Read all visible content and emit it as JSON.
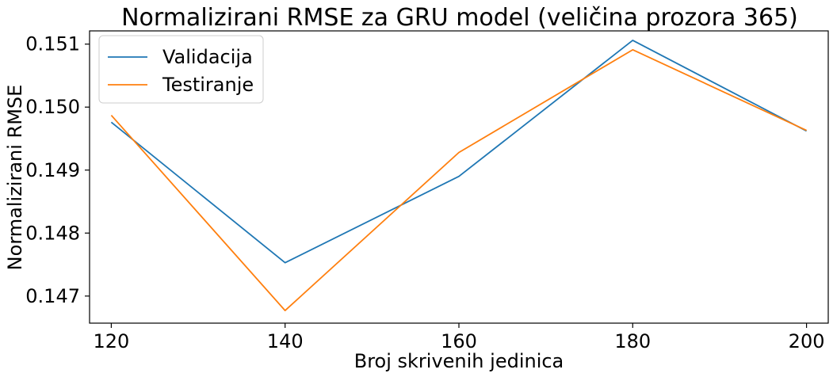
{
  "chart_data": {
    "type": "line",
    "title": "Normalizirani RMSE za GRU model (veličina prozora 365)",
    "xlabel": "Broj skrivenih jedinica",
    "ylabel": "Normalizirani RMSE",
    "x": [
      120,
      140,
      160,
      180,
      200
    ],
    "x_ticks": [
      120,
      140,
      160,
      180,
      200
    ],
    "y_ticks": [
      0.147,
      0.148,
      0.149,
      0.15,
      0.151
    ],
    "y_tick_labels": [
      "0.147",
      "0.148",
      "0.149",
      "0.150",
      "0.151"
    ],
    "xlim": [
      117.5,
      202.5
    ],
    "ylim": [
      0.14657,
      0.15121
    ],
    "grid": false,
    "legend_position": "top-left",
    "series": [
      {
        "name": "Validacija",
        "color": "#1f77b4",
        "values": [
          0.14976,
          0.14753,
          0.1489,
          0.15106,
          0.14962
        ]
      },
      {
        "name": "Testiranje",
        "color": "#ff7f0e",
        "values": [
          0.14987,
          0.14677,
          0.14928,
          0.15091,
          0.14963
        ]
      }
    ]
  }
}
